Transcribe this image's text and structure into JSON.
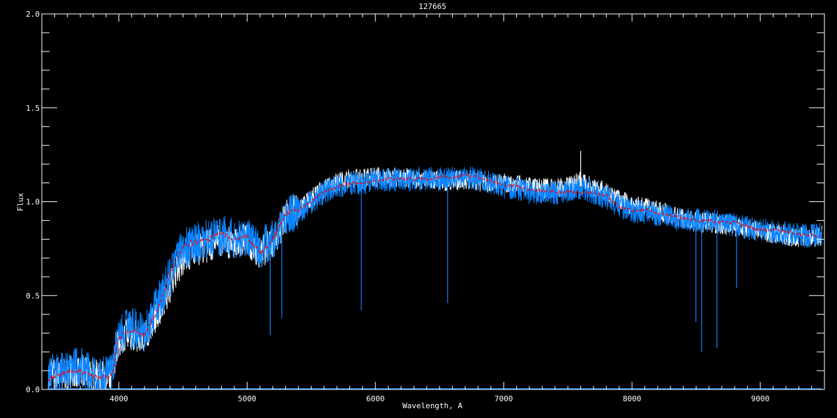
{
  "chart_data": {
    "type": "line",
    "title": "127665",
    "xlabel": "Wavelength, A",
    "ylabel": "Flux",
    "xlim": [
      3400,
      9500
    ],
    "ylim": [
      0.0,
      2.0
    ],
    "x_major_ticks": [
      4000,
      5000,
      6000,
      7000,
      8000,
      9000
    ],
    "x_tick_labels": [
      "4000",
      "5000",
      "6000",
      "7000",
      "8000",
      "9000"
    ],
    "x_minor_step": 100,
    "y_major_ticks": [
      0.0,
      0.5,
      1.0,
      1.5,
      2.0
    ],
    "y_tick_labels": [
      "0.0",
      "0.5",
      "1.0",
      "1.5",
      "2.0"
    ],
    "y_minor_step": 0.1,
    "grid": false,
    "background": "#000000",
    "colors": {
      "axes": "#ffffff",
      "observed_white": "#ffffff",
      "observed_blue": "#0a84ff",
      "model_red": "#ff0000"
    },
    "x": [
      3450,
      3500,
      3600,
      3700,
      3800,
      3900,
      3950,
      4000,
      4100,
      4200,
      4300,
      4400,
      4500,
      4600,
      4700,
      4800,
      4900,
      5000,
      5100,
      5200,
      5300,
      5400,
      5500,
      5600,
      5700,
      5800,
      5900,
      6000,
      6100,
      6200,
      6300,
      6400,
      6500,
      6600,
      6700,
      6800,
      6900,
      7000,
      7100,
      7200,
      7300,
      7400,
      7500,
      7600,
      7700,
      7800,
      7900,
      8000,
      8100,
      8200,
      8300,
      8400,
      8500,
      8600,
      8700,
      8800,
      8900,
      9000,
      9100,
      9200,
      9300,
      9400,
      9480
    ],
    "series": [
      {
        "color": "#ffffff",
        "style": "solid",
        "values": [
          0.07,
          0.09,
          0.09,
          0.11,
          0.07,
          0.07,
          0.09,
          0.27,
          0.3,
          0.27,
          0.4,
          0.55,
          0.7,
          0.74,
          0.77,
          0.8,
          0.78,
          0.8,
          0.72,
          0.78,
          0.92,
          0.96,
          1.02,
          1.07,
          1.1,
          1.12,
          1.12,
          1.13,
          1.13,
          1.13,
          1.12,
          1.12,
          1.11,
          1.11,
          1.12,
          1.11,
          1.1,
          1.1,
          1.09,
          1.08,
          1.07,
          1.07,
          1.08,
          1.11,
          1.08,
          1.05,
          1.01,
          0.98,
          0.97,
          0.95,
          0.93,
          0.91,
          0.89,
          0.89,
          0.88,
          0.87,
          0.85,
          0.84,
          0.83,
          0.82,
          0.81,
          0.81,
          0.82
        ]
      },
      {
        "color": "#0a84ff",
        "style": "solid",
        "values": [
          0.08,
          0.1,
          0.1,
          0.12,
          0.08,
          0.08,
          0.1,
          0.3,
          0.33,
          0.3,
          0.45,
          0.6,
          0.75,
          0.78,
          0.8,
          0.82,
          0.8,
          0.82,
          0.75,
          0.8,
          0.92,
          0.95,
          1.0,
          1.05,
          1.08,
          1.1,
          1.1,
          1.12,
          1.12,
          1.12,
          1.12,
          1.12,
          1.12,
          1.12,
          1.13,
          1.12,
          1.1,
          1.08,
          1.07,
          1.05,
          1.05,
          1.05,
          1.05,
          1.08,
          1.05,
          1.02,
          0.98,
          0.95,
          0.95,
          0.93,
          0.92,
          0.9,
          0.9,
          0.9,
          0.88,
          0.88,
          0.86,
          0.85,
          0.84,
          0.83,
          0.82,
          0.82,
          0.83
        ]
      },
      {
        "color": "#ff0000",
        "style": "dashed",
        "values": [
          0.05,
          0.07,
          0.09,
          0.1,
          0.07,
          0.06,
          0.08,
          0.28,
          0.31,
          0.29,
          0.42,
          0.62,
          0.76,
          0.79,
          0.8,
          0.83,
          0.8,
          0.82,
          0.72,
          0.8,
          0.93,
          0.96,
          1.0,
          1.05,
          1.08,
          1.1,
          1.1,
          1.11,
          1.12,
          1.12,
          1.12,
          1.12,
          1.13,
          1.13,
          1.14,
          1.13,
          1.11,
          1.09,
          1.08,
          1.06,
          1.06,
          1.05,
          1.05,
          1.05,
          1.05,
          1.03,
          0.97,
          0.95,
          0.96,
          0.94,
          0.93,
          0.91,
          0.9,
          0.9,
          0.89,
          0.89,
          0.87,
          0.85,
          0.85,
          0.84,
          0.83,
          0.82,
          0.82
        ]
      }
    ],
    "absorption_lines": [
      {
        "x": 5180,
        "min": 0.29
      },
      {
        "x": 5270,
        "min": 0.38
      },
      {
        "x": 5890,
        "min": 0.42
      },
      {
        "x": 6563,
        "min": 0.46
      },
      {
        "x": 8498,
        "min": 0.36
      },
      {
        "x": 8542,
        "min": 0.2
      },
      {
        "x": 8662,
        "min": 0.22
      },
      {
        "x": 8815,
        "min": 0.54
      }
    ],
    "emission_feature": {
      "x": 7600,
      "max": 1.27
    },
    "zero_line": {
      "color": "#0a84ff",
      "x_range": [
        3450,
        9480
      ],
      "value": 0.0
    }
  }
}
